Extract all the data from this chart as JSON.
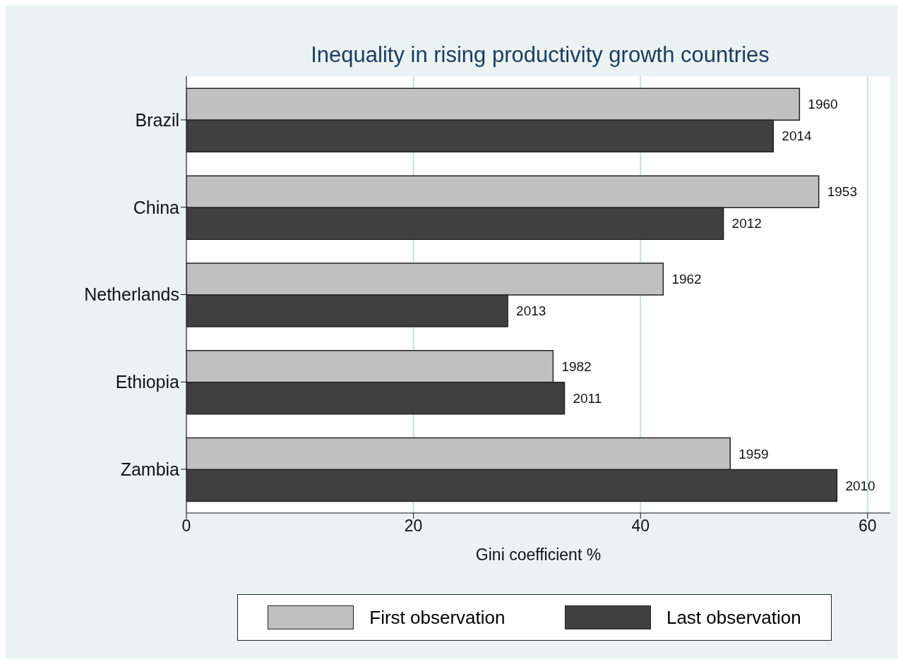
{
  "chart_data": {
    "type": "bar",
    "orientation": "horizontal",
    "title": "Inequality in rising productivity growth countries",
    "xlabel": "Gini coefficient %",
    "categories": [
      "Brazil",
      "China",
      "Netherlands",
      "Ethiopia",
      "Zambia"
    ],
    "series": [
      {
        "name": "First observation",
        "color": "#c0c0c0",
        "values": [
          54,
          55.7,
          42,
          32.3,
          47.9
        ]
      },
      {
        "name": "Last observation",
        "color": "#404040",
        "values": [
          51.7,
          47.3,
          28.3,
          33.3,
          57.3
        ]
      }
    ],
    "annotations": [
      {
        "text": "1960",
        "x": 54,
        "y": "Brazil"
      },
      {
        "text": "1953",
        "x": 55.7,
        "y": "China"
      },
      {
        "text": "1962",
        "x": 42,
        "y": "Netherlands"
      },
      {
        "text": "1982",
        "x": 32.3,
        "y": "Ethiopia"
      },
      {
        "text": "1959",
        "x": 47.9,
        "y": "Zambia"
      },
      {
        "text": "2014",
        "x": 51.7,
        "y": "Brazil"
      },
      {
        "text": "2012",
        "x": 47.3,
        "y": "China"
      },
      {
        "text": "2013",
        "x": 28.3,
        "y": "Netherlands"
      },
      {
        "text": "2011",
        "x": 33.3,
        "y": "Ethiopia"
      },
      {
        "text": "2010",
        "x": 57.3,
        "y": "Zambia"
      }
    ],
    "xlim": [
      0,
      62
    ],
    "xticks": [
      0,
      20,
      40,
      60
    ],
    "grid": "x",
    "legend": "bottom"
  }
}
